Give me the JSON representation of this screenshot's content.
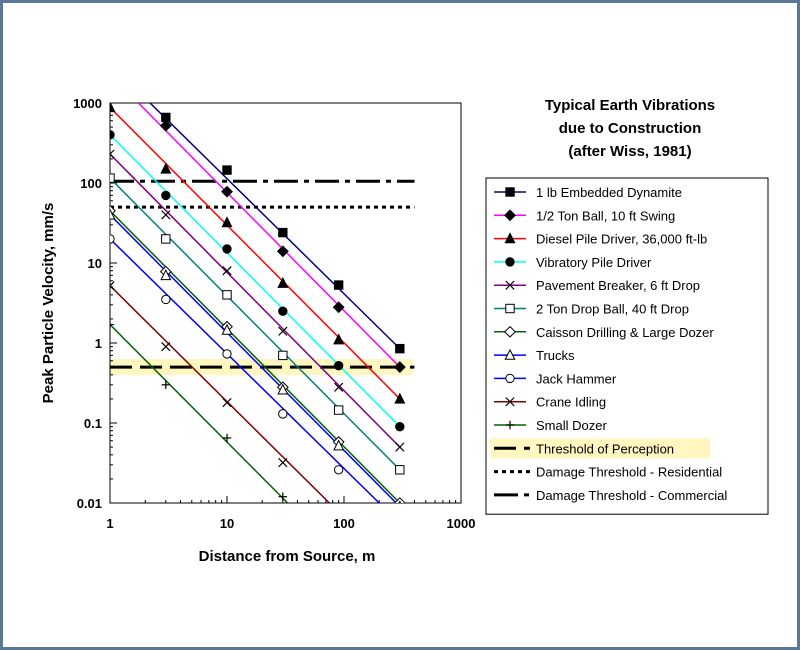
{
  "chart_data": {
    "type": "line",
    "title_lines": [
      "Typical Earth Vibrations",
      "due to Construction",
      "(after Wiss, 1981)"
    ],
    "xlabel": "Distance from Source, m",
    "ylabel": "Peak Particle Velocity, mm/s",
    "x_scale": "log",
    "y_scale": "log",
    "xlim": [
      1,
      1000
    ],
    "ylim": [
      0.01,
      1000
    ],
    "x_ticks": [
      "1",
      "10",
      "100",
      "1000"
    ],
    "x_tick_values": [
      1,
      10,
      100,
      1000
    ],
    "y_ticks": [
      "1000",
      "100",
      "10",
      "1",
      "0.1",
      "0.01"
    ],
    "y_tick_values": [
      1000,
      100,
      10,
      1,
      0.1,
      0.01
    ],
    "grid": false,
    "legend_position": "right",
    "series": [
      {
        "name": "1 lb Embedded Dynamite",
        "color": "#000080",
        "marker": "square-filled",
        "line_x": [
          2.2,
          300
        ],
        "line_y": [
          1000,
          0.85
        ],
        "points": [
          [
            3,
            660
          ],
          [
            10,
            145
          ],
          [
            30,
            24
          ],
          [
            90,
            5.3
          ],
          [
            300,
            0.85
          ]
        ]
      },
      {
        "name": "1/2 Ton Ball, 10 ft Swing",
        "color": "#ff00ff",
        "marker": "diamond-filled",
        "line_x": [
          1.75,
          300
        ],
        "line_y": [
          1000,
          0.5
        ],
        "points": [
          [
            3,
            520
          ],
          [
            10,
            78
          ],
          [
            30,
            14
          ],
          [
            90,
            2.8
          ],
          [
            300,
            0.5
          ]
        ]
      },
      {
        "name": "Diesel Pile Driver, 36,000 ft-lb",
        "color": "#ff0000",
        "marker": "triangle-filled",
        "line_x": [
          1,
          300
        ],
        "line_y": [
          880,
          0.2
        ],
        "points": [
          [
            1,
            880
          ],
          [
            3,
            150
          ],
          [
            10,
            32
          ],
          [
            30,
            5.6
          ],
          [
            90,
            1.1
          ],
          [
            300,
            0.2
          ]
        ]
      },
      {
        "name": "Vibratory Pile Driver",
        "color": "#00ffff",
        "marker": "circle-filled",
        "line_x": [
          1,
          300
        ],
        "line_y": [
          400,
          0.09
        ],
        "points": [
          [
            1,
            400
          ],
          [
            3,
            70
          ],
          [
            10,
            15
          ],
          [
            30,
            2.5
          ],
          [
            90,
            0.52
          ],
          [
            300,
            0.09
          ]
        ]
      },
      {
        "name": "Pavement Breaker, 6 ft Drop",
        "color": "#800080",
        "marker": "x",
        "line_x": [
          1,
          300
        ],
        "line_y": [
          230,
          0.05
        ],
        "points": [
          [
            1,
            230
          ],
          [
            3,
            40
          ],
          [
            10,
            8
          ],
          [
            30,
            1.4
          ],
          [
            90,
            0.28
          ],
          [
            300,
            0.05
          ]
        ]
      },
      {
        "name": "2 Ton Drop Ball, 40 ft Drop",
        "color": "#008080",
        "marker": "square-open",
        "line_x": [
          1,
          300
        ],
        "line_y": [
          115,
          0.026
        ],
        "points": [
          [
            1,
            115
          ],
          [
            3,
            20
          ],
          [
            10,
            4
          ],
          [
            30,
            0.7
          ],
          [
            90,
            0.145
          ],
          [
            300,
            0.026
          ]
        ]
      },
      {
        "name": "Caisson Drilling & Large Dozer",
        "color": "#006400",
        "marker": "diamond-open",
        "line_x": [
          1,
          300
        ],
        "line_y": [
          45,
          0.01
        ],
        "points": [
          [
            1,
            45
          ],
          [
            3,
            7.8
          ],
          [
            10,
            1.6
          ],
          [
            30,
            0.28
          ],
          [
            90,
            0.058
          ],
          [
            300,
            0.01
          ]
        ]
      },
      {
        "name": "Trucks",
        "color": "#0000ff",
        "marker": "triangle-open",
        "line_x": [
          1,
          300
        ],
        "line_y": [
          40,
          0.009
        ],
        "points": [
          [
            1,
            40
          ],
          [
            3,
            7
          ],
          [
            10,
            1.45
          ],
          [
            30,
            0.26
          ],
          [
            90,
            0.052
          ],
          [
            300,
            0.009
          ]
        ]
      },
      {
        "name": "Jack Hammer",
        "color": "#0000ff",
        "marker": "circle-open",
        "line_x": [
          1,
          200
        ],
        "line_y": [
          20,
          0.01
        ],
        "points": [
          [
            1,
            20
          ],
          [
            3,
            3.5
          ],
          [
            10,
            0.73
          ],
          [
            30,
            0.13
          ],
          [
            90,
            0.026
          ]
        ]
      },
      {
        "name": "Crane Idling",
        "color": "#800000",
        "marker": "x",
        "line_x": [
          1,
          75
        ],
        "line_y": [
          5.2,
          0.01
        ],
        "points": [
          [
            1,
            5.2
          ],
          [
            3,
            0.9
          ],
          [
            10,
            0.18
          ],
          [
            30,
            0.032
          ]
        ]
      },
      {
        "name": "Small Dozer",
        "color": "#006400",
        "marker": "plus",
        "line_x": [
          1,
          33
        ],
        "line_y": [
          1.7,
          0.01
        ],
        "points": [
          [
            1,
            1.7
          ],
          [
            3,
            0.3
          ],
          [
            10,
            0.065
          ],
          [
            30,
            0.012
          ]
        ]
      }
    ],
    "thresholds": [
      {
        "name": "Threshold of Perception",
        "value": 0.5,
        "style": "long-dash",
        "highlight": "#fff6c0"
      },
      {
        "name": "Damage Threshold - Residential",
        "value": 50,
        "style": "short-dash"
      },
      {
        "name": "Damage Threshold - Commercial",
        "value": 105,
        "style": "dash-dot"
      }
    ]
  }
}
